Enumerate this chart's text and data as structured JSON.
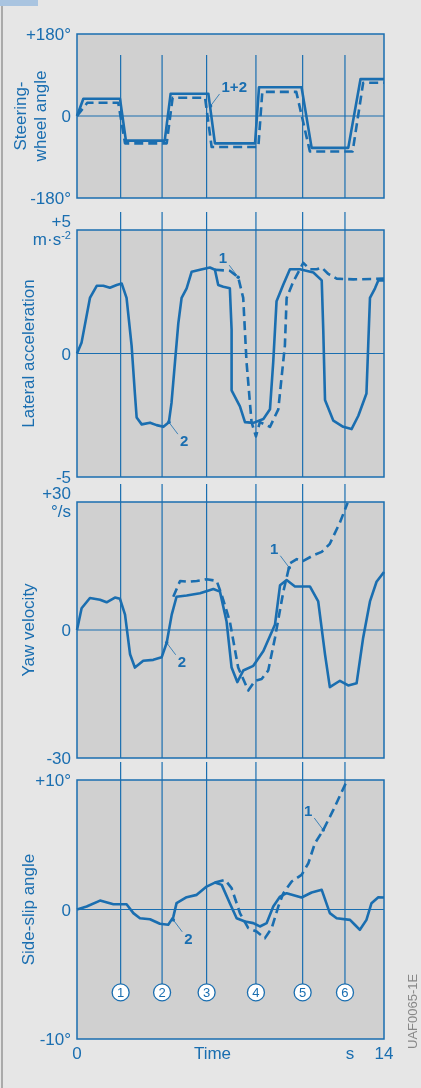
{
  "chart_data": [
    {
      "type": "line",
      "ylabel": "Steering-wheel angle",
      "xlim": [
        0,
        14
      ],
      "ylim": [
        -180,
        180
      ],
      "yticks": [
        {
          "value": 180,
          "label": "+180°"
        },
        0,
        {
          "value": -180,
          "label": "-180°"
        }
      ],
      "tick_labels": "y",
      "grid": false,
      "series": [
        {
          "color": "#1a6eb0",
          "line_style": "dashed",
          "x": [
            0,
            0.47,
            1.88,
            2.19,
            4.09,
            4.36,
            5.84,
            6.14,
            8.27,
            8.45,
            10.0,
            10.62,
            12.57,
            13.05,
            14
          ],
          "values": [
            0,
            29,
            29,
            -60,
            -60,
            40,
            40,
            -68,
            -68,
            53,
            53,
            -78,
            -78,
            73,
            73
          ]
        },
        {
          "color": "#1a6eb0",
          "line_style": "solid",
          "x": [
            0,
            0.29,
            1.96,
            2.23,
            4.0,
            4.27,
            5.99,
            6.29,
            8.12,
            8.3,
            10.24,
            10.7,
            12.37,
            12.93,
            14
          ],
          "values": [
            0,
            38,
            38,
            -54,
            -54,
            49,
            49,
            -60,
            -60,
            63,
            63,
            -70,
            -70,
            81,
            81
          ]
        }
      ],
      "ref_lines": [
        {
          "axis": "y",
          "value": 0
        },
        {
          "axis": "x",
          "value": 1.99
        },
        {
          "axis": "x",
          "value": 3.88
        },
        {
          "axis": "x",
          "value": 5.91
        },
        {
          "axis": "x",
          "value": 8.16
        },
        {
          "axis": "x",
          "value": 10.29
        },
        {
          "axis": "x",
          "value": 12.22
        }
      ],
      "annotations": [
        {
          "text": "1+2",
          "x": 6.09,
          "y": 22
        }
      ]
    },
    {
      "type": "line",
      "ylabel": "Lateral acceleration",
      "xlim": [
        0,
        14
      ],
      "ylim": [
        -5,
        5
      ],
      "yticks": [
        {
          "value": 5,
          "label": "+5 m·s$^{-2}$"
        },
        0,
        -5
      ],
      "tick_labels": "y",
      "grid": false,
      "series": [
        {
          "color": "#1a6eb0",
          "line_style": "dashed",
          "x": [
            6.29,
            6.97,
            7.35,
            7.58,
            7.73,
            7.96,
            8.16,
            8.34,
            8.8,
            9.18,
            9.48,
            9.56,
            9.86,
            10.32,
            10.62,
            10.93,
            11.16,
            11.46,
            11.84,
            12.6,
            14
          ],
          "values": [
            3.39,
            3.35,
            3.09,
            2.25,
            -0.33,
            -2.78,
            -3.36,
            -2.78,
            -2.97,
            -2.26,
            0.32,
            2.25,
            2.9,
            3.67,
            3.41,
            3.41,
            3.48,
            3.22,
            3.03,
            3.0,
            3.03
          ]
        },
        {
          "color": "#1a6eb0",
          "line_style": "solid",
          "x": [
            0,
            0.21,
            0.59,
            0.9,
            1.2,
            1.5,
            1.81,
            2.04,
            2.26,
            2.49,
            2.64,
            2.72,
            2.95,
            3.33,
            3.63,
            3.94,
            4.19,
            4.31,
            4.47,
            4.62,
            4.77,
            5.0,
            5.23,
            5.61,
            6.06,
            6.29,
            6.44,
            6.67,
            6.97,
            7.05,
            7.05,
            7.43,
            7.66,
            8.04,
            8.5,
            8.8,
            8.95,
            9.1,
            9.4,
            9.71,
            10.17,
            10.78,
            11.16,
            11.23,
            11.31,
            11.69,
            12.14,
            12.52,
            12.83,
            13.2,
            13.28,
            13.36,
            13.59,
            13.74,
            14
          ],
          "values": [
            0,
            0.45,
            2.25,
            2.74,
            2.74,
            2.66,
            2.77,
            2.83,
            2.25,
            0.32,
            -1.62,
            -2.59,
            -2.87,
            -2.8,
            -2.9,
            -2.97,
            -2.78,
            -2.0,
            -0.33,
            1.22,
            2.25,
            2.64,
            3.31,
            3.39,
            3.48,
            3.39,
            2.77,
            2.7,
            2.64,
            0.96,
            -1.49,
            -2.14,
            -2.78,
            -2.81,
            -2.65,
            -2.26,
            -0.33,
            2.12,
            2.77,
            3.41,
            3.41,
            3.28,
            2.96,
            0.96,
            -1.88,
            -2.72,
            -2.97,
            -3.06,
            -2.52,
            -1.62,
            0.32,
            2.25,
            2.64,
            2.96,
            2.96
          ]
        }
      ],
      "ref_lines": [
        {
          "axis": "y",
          "value": 0
        },
        {
          "axis": "x",
          "value": 1.99
        },
        {
          "axis": "x",
          "value": 3.88
        },
        {
          "axis": "x",
          "value": 5.91
        },
        {
          "axis": "x",
          "value": 8.16
        },
        {
          "axis": "x",
          "value": 10.29
        },
        {
          "axis": "x",
          "value": 12.22
        }
      ],
      "annotations": [
        {
          "text": "1",
          "x": 7.35,
          "y": 3.09
        },
        {
          "text": "2",
          "x": 4.19,
          "y": -2.78
        }
      ]
    },
    {
      "type": "line",
      "ylabel": "Yaw velocity",
      "xlim": [
        0,
        14
      ],
      "ylim": [
        -30,
        30
      ],
      "yticks": [
        {
          "value": 30,
          "label": "+30 °/s"
        },
        0,
        -30
      ],
      "tick_labels": "y",
      "grid": false,
      "series": [
        {
          "color": "#1a6eb0",
          "line_style": "dashed",
          "x": [
            4.39,
            4.7,
            5.08,
            5.46,
            5.91,
            6.37,
            6.6,
            6.97,
            7.35,
            7.81,
            8.12,
            8.42,
            8.72,
            9.03,
            9.41,
            9.71,
            10.02,
            10.32,
            10.78,
            11.16,
            11.53,
            11.99,
            12.34
          ],
          "values": [
            7.8,
            11.5,
            11.3,
            11.5,
            11.9,
            11.5,
            8.2,
            2.0,
            -8.8,
            -14.2,
            -11.9,
            -11.5,
            -9.5,
            -1.8,
            9.0,
            15.6,
            16.6,
            16.2,
            17.5,
            18.3,
            20.2,
            25.2,
            29.8
          ]
        },
        {
          "color": "#1a6eb0",
          "line_style": "solid",
          "x": [
            0,
            0.21,
            0.59,
            1.05,
            1.35,
            1.73,
            1.96,
            2.19,
            2.42,
            2.64,
            3.02,
            3.48,
            3.86,
            4.09,
            4.32,
            4.54,
            5.0,
            5.61,
            6.22,
            6.52,
            6.82,
            7.05,
            7.31,
            7.58,
            8.04,
            8.5,
            9.03,
            9.26,
            9.56,
            9.94,
            10.62,
            11.0,
            11.31,
            11.53,
            11.99,
            12.37,
            12.75,
            13.05,
            13.36,
            13.66,
            14
          ],
          "values": [
            0,
            5.1,
            7.5,
            7.1,
            6.5,
            7.6,
            7.3,
            3.6,
            -5.7,
            -8.8,
            -7.2,
            -7.0,
            -6.4,
            -3.0,
            3.6,
            7.8,
            8.1,
            8.6,
            9.6,
            9.0,
            2.0,
            -8.8,
            -12.2,
            -9.5,
            -8.4,
            -4.9,
            1.3,
            10.5,
            11.7,
            10.2,
            10.2,
            6.7,
            -5.7,
            -13.4,
            -11.9,
            -13.0,
            -12.5,
            -1.8,
            6.7,
            11.3,
            13.6
          ]
        }
      ],
      "ref_lines": [
        {
          "axis": "y",
          "value": 0
        },
        {
          "axis": "x",
          "value": 1.99
        },
        {
          "axis": "x",
          "value": 3.88
        },
        {
          "axis": "x",
          "value": 5.91
        },
        {
          "axis": "x",
          "value": 8.16
        },
        {
          "axis": "x",
          "value": 10.29
        },
        {
          "axis": "x",
          "value": 12.22
        }
      ],
      "annotations": [
        {
          "text": "1",
          "x": 9.68,
          "y": 14.6
        },
        {
          "text": "2",
          "x": 4.09,
          "y": -3.0
        }
      ]
    },
    {
      "type": "line",
      "ylabel": "Side-slip angle",
      "xlabel": "Time",
      "xlim": [
        0,
        14
      ],
      "xticks": [
        0,
        14
      ],
      "ylim": [
        -10,
        10
      ],
      "yticks": [
        {
          "value": 10,
          "label": "+10°"
        },
        0,
        {
          "value": -10,
          "label": "-10°"
        }
      ],
      "grid": false,
      "series": [
        {
          "color": "#1a6eb0",
          "line_style": "dashed",
          "x": [
            6.29,
            6.75,
            7.05,
            7.43,
            7.81,
            8.19,
            8.57,
            8.88,
            9.18,
            9.41,
            9.79,
            10.24,
            10.55,
            10.85,
            11.23,
            11.69,
            12.29
          ],
          "values": [
            2.08,
            2.29,
            1.65,
            -0.28,
            -1.44,
            -1.7,
            -2.21,
            -1.44,
            0.23,
            1.26,
            2.16,
            2.67,
            3.57,
            5.12,
            6.14,
            7.69,
            9.87
          ]
        },
        {
          "color": "#1a6eb0",
          "line_style": "solid",
          "x": [
            0,
            0.44,
            1.05,
            1.66,
            2.26,
            2.57,
            2.87,
            3.33,
            3.78,
            4.16,
            4.39,
            4.54,
            5.0,
            5.46,
            5.91,
            6.29,
            6.6,
            6.97,
            7.28,
            7.66,
            8.04,
            8.34,
            8.65,
            8.95,
            9.26,
            9.56,
            10.24,
            10.7,
            11.16,
            11.53,
            11.84,
            12.45,
            12.67,
            12.9,
            13.2,
            13.43,
            13.74,
            14
          ],
          "values": [
            0,
            0.23,
            0.69,
            0.41,
            0.41,
            -0.28,
            -0.67,
            -0.75,
            -1.1,
            -1.18,
            -0.59,
            0.49,
            0.95,
            1.13,
            1.77,
            2.08,
            1.9,
            0.49,
            -0.67,
            -0.93,
            -1.05,
            -1.31,
            -1.05,
            0.23,
            1.0,
            1.26,
            0.93,
            1.31,
            1.52,
            -0.28,
            -0.67,
            -0.8,
            -1.18,
            -1.57,
            -0.8,
            0.49,
            0.95,
            0.93
          ]
        }
      ],
      "ref_lines": [
        {
          "axis": "y",
          "value": 0
        },
        {
          "axis": "x",
          "value": 1.99
        },
        {
          "axis": "x",
          "value": 3.88
        },
        {
          "axis": "x",
          "value": 5.91
        },
        {
          "axis": "x",
          "value": 8.16
        },
        {
          "axis": "x",
          "value": 10.29
        },
        {
          "axis": "x",
          "value": 12.22
        }
      ],
      "annotations": [
        "s",
        {
          "text": "1",
          "x": 11.23,
          "y": 6.14
        },
        {
          "text": "2",
          "x": 4.39,
          "y": -0.8
        },
        "UAF0065-1E",
        {
          "text": "1",
          "x": 1.99,
          "y": -6.4
        },
        {
          "text": "2",
          "x": 3.88,
          "y": -6.4
        },
        {
          "text": "3",
          "x": 5.91,
          "y": -6.4
        },
        {
          "text": "4",
          "x": 8.16,
          "y": -6.4
        },
        {
          "text": "5",
          "x": 10.29,
          "y": -6.4
        },
        {
          "text": "6",
          "x": 12.22,
          "y": -6.4
        }
      ]
    }
  ]
}
